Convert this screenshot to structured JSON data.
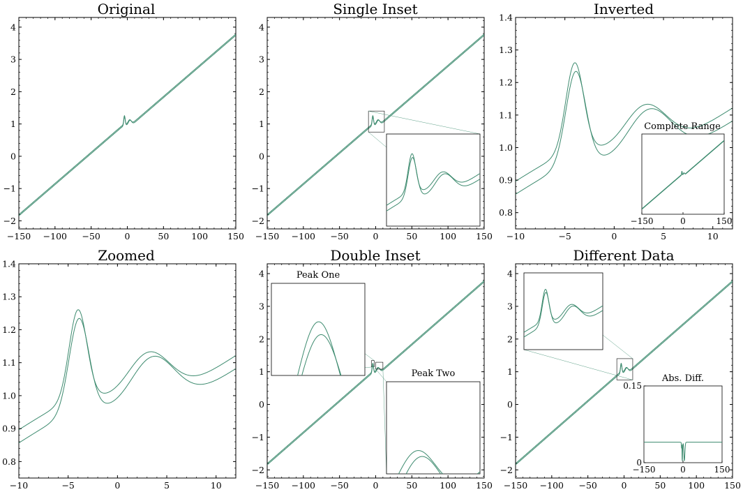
{
  "colors": {
    "series": "#3c8a6e",
    "connector": "#5a9e85"
  },
  "chart_data": [
    {
      "id": "original",
      "title": "Original",
      "type": "line",
      "xlim": [
        -150,
        150
      ],
      "ylim": [
        -2.25,
        4.3
      ],
      "xticks": [
        -150,
        -100,
        -50,
        0,
        50,
        100,
        150
      ],
      "yticks": [
        -2,
        -1,
        0,
        1,
        2,
        3,
        4
      ],
      "series": [
        {
          "x": [
            -150,
            150
          ],
          "y": [
            -1.8,
            4.0
          ]
        },
        {
          "x": [
            -150,
            150
          ],
          "y": [
            -2.0,
            3.8
          ]
        }
      ],
      "insets": []
    },
    {
      "id": "single-inset",
      "title": "Single Inset",
      "type": "line",
      "xlim": [
        -150,
        150
      ],
      "ylim": [
        -2.25,
        4.3
      ],
      "xticks": [
        -150,
        -100,
        -50,
        0,
        50,
        100,
        150
      ],
      "yticks": [
        -2,
        -1,
        0,
        1,
        2,
        3,
        4
      ],
      "insets": [
        {
          "label": "",
          "view": [
            -10,
            12,
            0.75,
            1.4
          ],
          "xticks": [],
          "yticks": []
        }
      ]
    },
    {
      "id": "inverted",
      "title": "Inverted",
      "type": "line",
      "xlim": [
        -10,
        12
      ],
      "ylim": [
        0.75,
        1.4
      ],
      "xticks": [
        -10,
        -5,
        0,
        5,
        10
      ],
      "yticks": [
        0.8,
        0.9,
        1.0,
        1.1,
        1.2,
        1.3,
        1.4
      ],
      "insets": [
        {
          "label": "Complete Range",
          "view": [
            -150,
            150,
            -2.25,
            4.3
          ],
          "xticks": [
            -150,
            0,
            150
          ],
          "yticks": []
        }
      ]
    },
    {
      "id": "zoomed",
      "title": "Zoomed",
      "type": "line",
      "xlim": [
        -10,
        12
      ],
      "ylim": [
        0.75,
        1.4
      ],
      "xticks": [
        -10,
        -5,
        0,
        5,
        10
      ],
      "yticks": [
        0.8,
        0.9,
        1.0,
        1.1,
        1.2,
        1.3,
        1.4
      ],
      "insets": []
    },
    {
      "id": "double-inset",
      "title": "Double Inset",
      "type": "line",
      "xlim": [
        -150,
        150
      ],
      "ylim": [
        -2.25,
        4.3
      ],
      "xticks": [
        -150,
        -100,
        -50,
        0,
        50,
        100,
        150
      ],
      "yticks": [
        -2,
        -1,
        0,
        1,
        2,
        3,
        4
      ],
      "insets": [
        {
          "label": "Peak One",
          "view": [
            -6,
            -2,
            1.15,
            1.34
          ],
          "xticks": [],
          "yticks": []
        },
        {
          "label": "Peak Two",
          "view": [
            0,
            10,
            1.08,
            1.29
          ],
          "xticks": [],
          "yticks": []
        }
      ]
    },
    {
      "id": "different-data",
      "title": "Different Data",
      "type": "line",
      "xlim": [
        -150,
        150
      ],
      "ylim": [
        -2.25,
        4.3
      ],
      "xticks": [
        -150,
        -100,
        -50,
        0,
        50,
        100,
        150
      ],
      "yticks": [
        -2,
        -1,
        0,
        1,
        2,
        3,
        4
      ],
      "insets": [
        {
          "label": "",
          "view": [
            -10,
            12,
            0.75,
            1.4
          ],
          "xticks": [],
          "yticks": []
        },
        {
          "label": "Abs. Diff.",
          "view": [
            -150,
            150,
            0,
            0.15
          ],
          "xticks": [
            -150,
            0,
            150
          ],
          "yticks": [
            "0",
            "0.15"
          ]
        }
      ]
    }
  ]
}
